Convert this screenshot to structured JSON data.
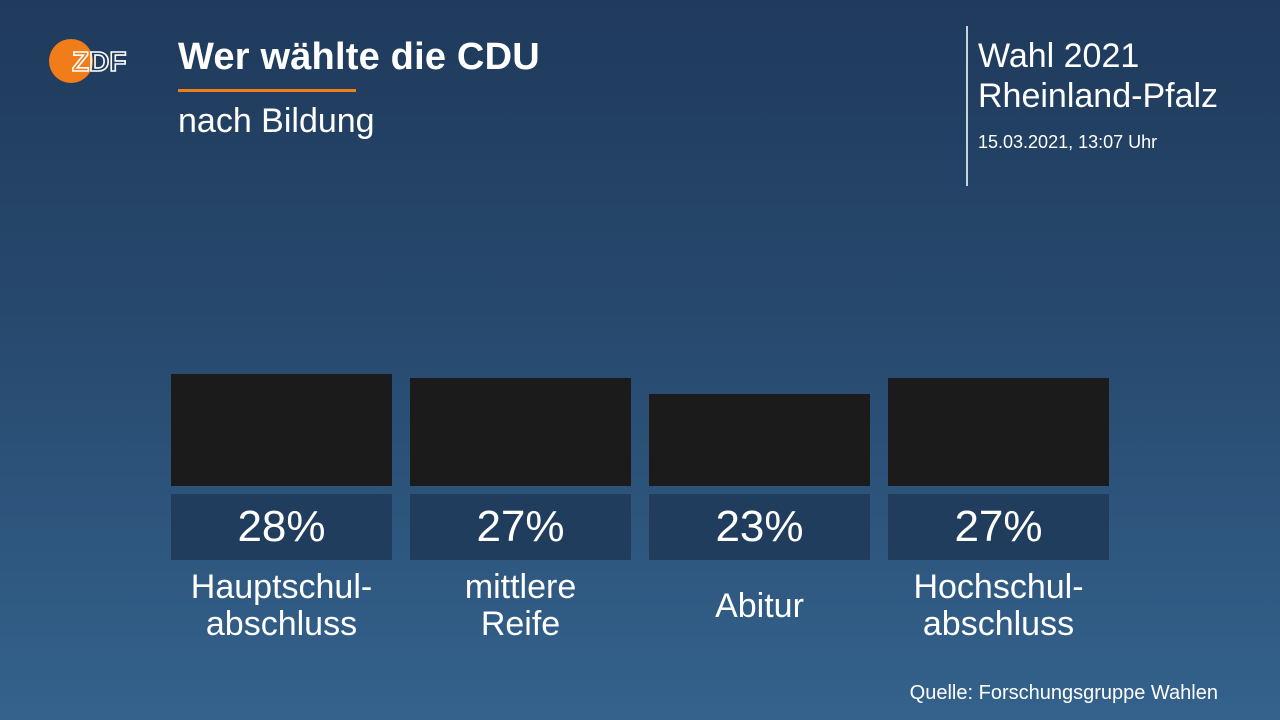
{
  "header": {
    "logo_text": "ZDF",
    "title": "Wer wählte die CDU",
    "subtitle": "nach Bildung",
    "election_line1": "Wahl 2021",
    "election_line2": "Rheinland-Pfalz",
    "timestamp": "15.03.2021, 13:07 Uhr"
  },
  "colors": {
    "accent": "#f07d19",
    "bar": "#1b1b1b",
    "value_box": "#213d5e"
  },
  "chart_data": {
    "type": "bar",
    "title": "Wer wählte die CDU",
    "subtitle": "nach Bildung",
    "categories": [
      "Hauptschul-abschluss",
      "mittlere Reife",
      "Abitur",
      "Hochschul-abschluss"
    ],
    "category_lines": [
      [
        "Hauptschul-",
        "abschluss"
      ],
      [
        "mittlere",
        "Reife"
      ],
      [
        "Abitur"
      ],
      [
        "Hochschul-",
        "abschluss"
      ]
    ],
    "values": [
      28,
      27,
      23,
      27
    ],
    "value_labels": [
      "28%",
      "27%",
      "23%",
      "27%"
    ],
    "unit": "%",
    "grid": false,
    "legend": "none"
  },
  "footer": {
    "source": "Quelle: Forschungsgruppe Wahlen"
  }
}
